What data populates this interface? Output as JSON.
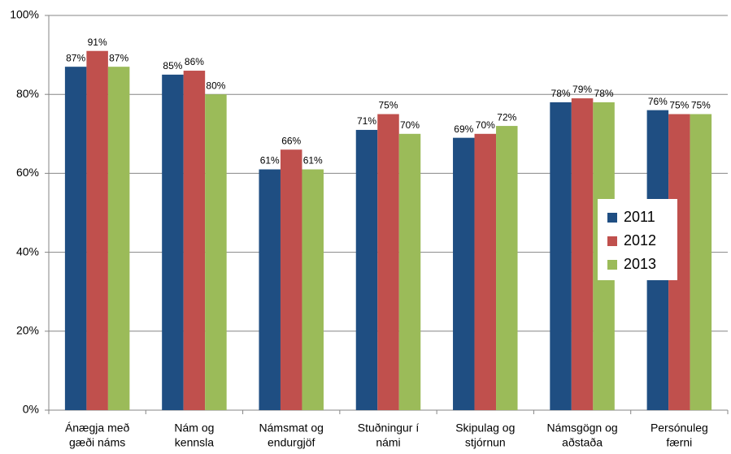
{
  "chart_data": {
    "type": "bar",
    "categories": [
      [
        "Ánægja með",
        "gæði náms"
      ],
      [
        "Nám og",
        "kennsla"
      ],
      [
        "Námsmat og",
        "endurgjöf"
      ],
      [
        "Stuðningur í",
        "námi"
      ],
      [
        "Skipulag og",
        "stjórnun"
      ],
      [
        "Námsgögn og",
        "aðstaða"
      ],
      [
        "Persónuleg",
        "færni"
      ]
    ],
    "series": [
      {
        "name": "2011",
        "color": "#1f4e82",
        "values": [
          87,
          85,
          61,
          71,
          69,
          78,
          76
        ],
        "value_labels": [
          "87%",
          "85%",
          "61%",
          "71%",
          "69%",
          "78%",
          "76%"
        ]
      },
      {
        "name": "2012",
        "color": "#c0504d",
        "values": [
          91,
          86,
          66,
          75,
          70,
          79,
          75
        ],
        "value_labels": [
          "91%",
          "86%",
          "66%",
          "75%",
          "70%",
          "79%",
          "75%"
        ]
      },
      {
        "name": "2013",
        "color": "#9bbb59",
        "values": [
          87,
          80,
          61,
          70,
          72,
          78,
          75
        ],
        "value_labels": [
          "87%",
          "80%",
          "61%",
          "70%",
          "72%",
          "78%",
          "75%"
        ]
      }
    ],
    "ylim": [
      0,
      100
    ],
    "yticks": [
      {
        "value": 0,
        "label": "0%"
      },
      {
        "value": 20,
        "label": "20%"
      },
      {
        "value": 40,
        "label": "40%"
      },
      {
        "value": 60,
        "label": "60%"
      },
      {
        "value": 80,
        "label": "80%"
      },
      {
        "value": 100,
        "label": "100%"
      }
    ],
    "grid": true,
    "legend": "right"
  }
}
